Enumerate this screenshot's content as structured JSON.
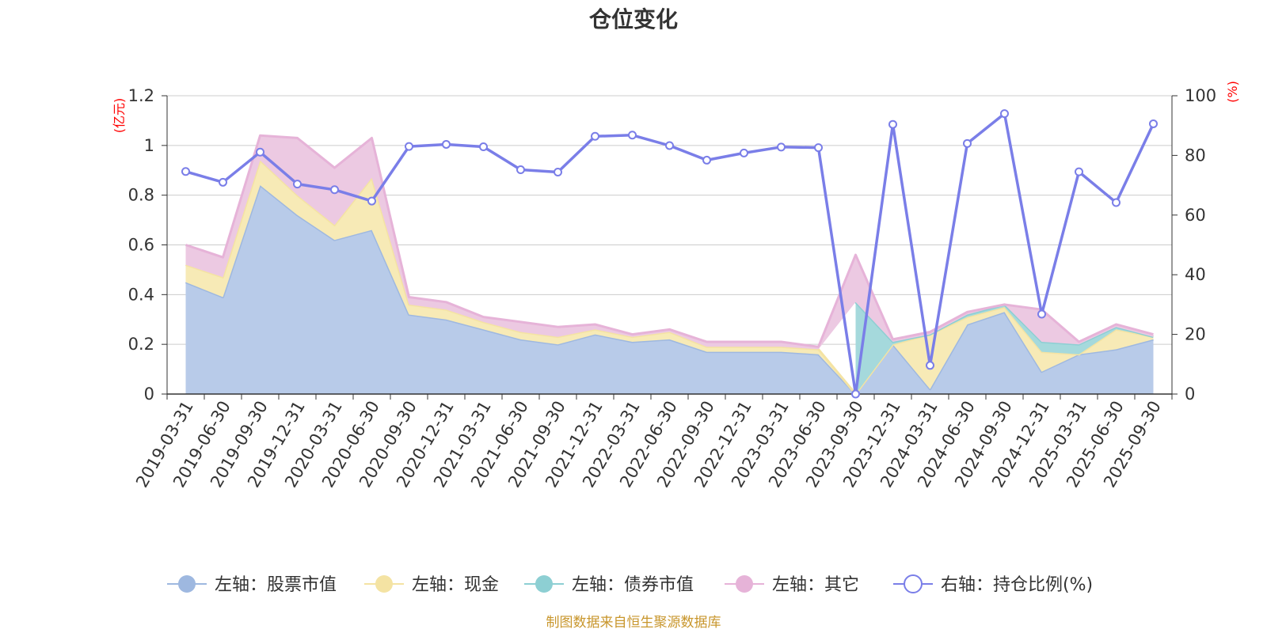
{
  "chart_data": {
    "type": "area",
    "title": "仓位变化",
    "left_unit": "(亿元)",
    "right_unit": "(%)",
    "source": "制图数据来自恒生聚源数据库",
    "x": [
      "2019-03-31",
      "2019-06-30",
      "2019-09-30",
      "2019-12-31",
      "2020-03-31",
      "2020-06-30",
      "2020-09-30",
      "2020-12-31",
      "2021-03-31",
      "2021-06-30",
      "2021-09-30",
      "2021-12-31",
      "2022-03-31",
      "2022-06-30",
      "2022-09-30",
      "2022-12-31",
      "2023-03-31",
      "2023-06-30",
      "2023-09-30",
      "2023-12-31",
      "2024-03-31",
      "2024-06-30",
      "2024-09-30",
      "2024-12-31",
      "2025-03-31",
      "2025-06-30",
      "2025-09-30"
    ],
    "y_left": {
      "min": 0,
      "max": 1.2,
      "ticks": [
        "0",
        "0.2",
        "0.4",
        "0.6",
        "0.8",
        "1",
        "1.2"
      ]
    },
    "y_right": {
      "min": 0,
      "max": 100,
      "ticks": [
        "0",
        "20",
        "40",
        "60",
        "80",
        "100"
      ]
    },
    "series": [
      {
        "name": "左轴：股票市值",
        "axis": "left",
        "stack": true,
        "color": "#9eb8e0",
        "fill": "#b8cbe9",
        "values": [
          0.45,
          0.39,
          0.84,
          0.72,
          0.62,
          0.66,
          0.32,
          0.3,
          0.26,
          0.22,
          0.2,
          0.24,
          0.21,
          0.22,
          0.17,
          0.17,
          0.17,
          0.16,
          0.0,
          0.2,
          0.02,
          0.28,
          0.33,
          0.09,
          0.16,
          0.18,
          0.22
        ]
      },
      {
        "name": "左轴：现金",
        "axis": "left",
        "stack": true,
        "color": "#f4e3a3",
        "fill": "#f7eab6",
        "values": [
          0.07,
          0.08,
          0.1,
          0.08,
          0.06,
          0.21,
          0.04,
          0.04,
          0.03,
          0.03,
          0.03,
          0.02,
          0.02,
          0.03,
          0.02,
          0.02,
          0.02,
          0.02,
          0.0,
          0.0,
          0.22,
          0.03,
          0.02,
          0.08,
          0.0,
          0.08,
          0.01
        ]
      },
      {
        "name": "左轴：债券市值",
        "axis": "left",
        "stack": true,
        "color": "#8dcfd3",
        "fill": "#a5d9dc",
        "values": [
          0,
          0,
          0,
          0,
          0,
          0,
          0,
          0,
          0,
          0,
          0,
          0,
          0,
          0,
          0,
          0,
          0,
          0,
          0.37,
          0.01,
          0,
          0.01,
          0.01,
          0.04,
          0.04,
          0.01,
          0
        ],
        "fill_start": 18
      },
      {
        "name": "左轴：其它",
        "axis": "left",
        "stack": true,
        "color": "#e6b3d8",
        "fill": "#ecc9e2",
        "values": [
          0.08,
          0.08,
          0.1,
          0.23,
          0.23,
          0.16,
          0.03,
          0.03,
          0.02,
          0.04,
          0.04,
          0.02,
          0.01,
          0.01,
          0.02,
          0.02,
          0.02,
          0.01,
          0.19,
          0.01,
          0.01,
          0.01,
          0.0,
          0.13,
          0.01,
          0.01,
          0.01
        ]
      },
      {
        "name": "右轴：持仓比例(%)",
        "axis": "right",
        "stack": false,
        "color": "#7a7ee8",
        "values": [
          74.6,
          71.0,
          81.1,
          70.4,
          68.5,
          64.7,
          83.0,
          83.7,
          82.9,
          75.2,
          74.4,
          86.4,
          86.8,
          83.3,
          78.4,
          80.8,
          82.8,
          82.6,
          0.0,
          90.4,
          9.6,
          84.0,
          94.0,
          26.8,
          74.5,
          64.2,
          90.6
        ]
      }
    ]
  }
}
